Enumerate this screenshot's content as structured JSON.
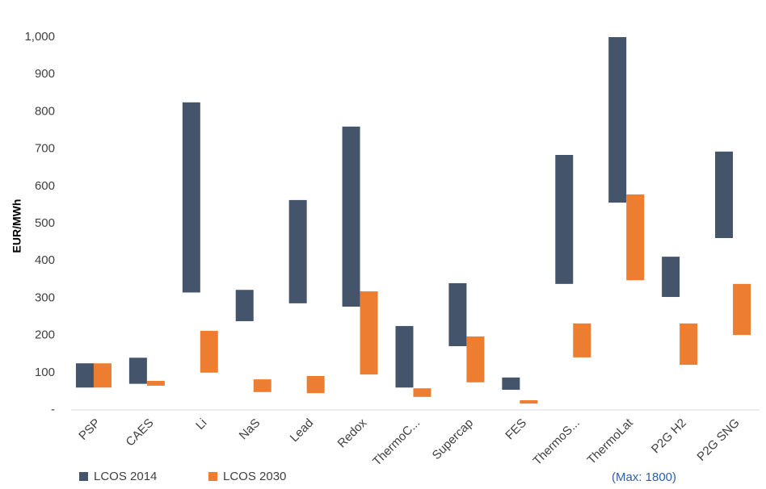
{
  "chart_data": {
    "type": "range_bar",
    "y_label": "EUR/MWh",
    "annotation": "(Max: 1800)",
    "categories": [
      "PSP",
      "CAES",
      "Li",
      "NaS",
      "Lead",
      "Redox",
      "ThermoC...",
      "Supercap",
      "FES",
      "ThermoS...",
      "ThermoLat",
      "P2G H2",
      "P2G SNG"
    ],
    "series": [
      {
        "name": "LCOS 2014",
        "color": "#44546a",
        "low": [
          60,
          70,
          315,
          238,
          286,
          277,
          60,
          171,
          54,
          338,
          556,
          303,
          461
        ],
        "high": [
          125,
          140,
          825,
          322,
          563,
          760,
          225,
          340,
          87,
          684,
          1000,
          411,
          693
        ]
      },
      {
        "name": "LCOS 2030",
        "color": "#ed7d31",
        "low": [
          60,
          65,
          100,
          48,
          45,
          95,
          35,
          74,
          17,
          141,
          348,
          121,
          201
        ],
        "high": [
          125,
          78,
          212,
          82,
          91,
          318,
          58,
          197,
          26,
          232,
          578,
          232,
          338
        ]
      }
    ],
    "ylim": [
      0,
      1000
    ],
    "yticks": [
      {
        "value": 0,
        "label": "-"
      },
      100,
      200,
      300,
      400,
      500,
      600,
      700,
      800,
      900,
      {
        "value": 1000,
        "label": "1,000"
      }
    ],
    "grid": false
  }
}
